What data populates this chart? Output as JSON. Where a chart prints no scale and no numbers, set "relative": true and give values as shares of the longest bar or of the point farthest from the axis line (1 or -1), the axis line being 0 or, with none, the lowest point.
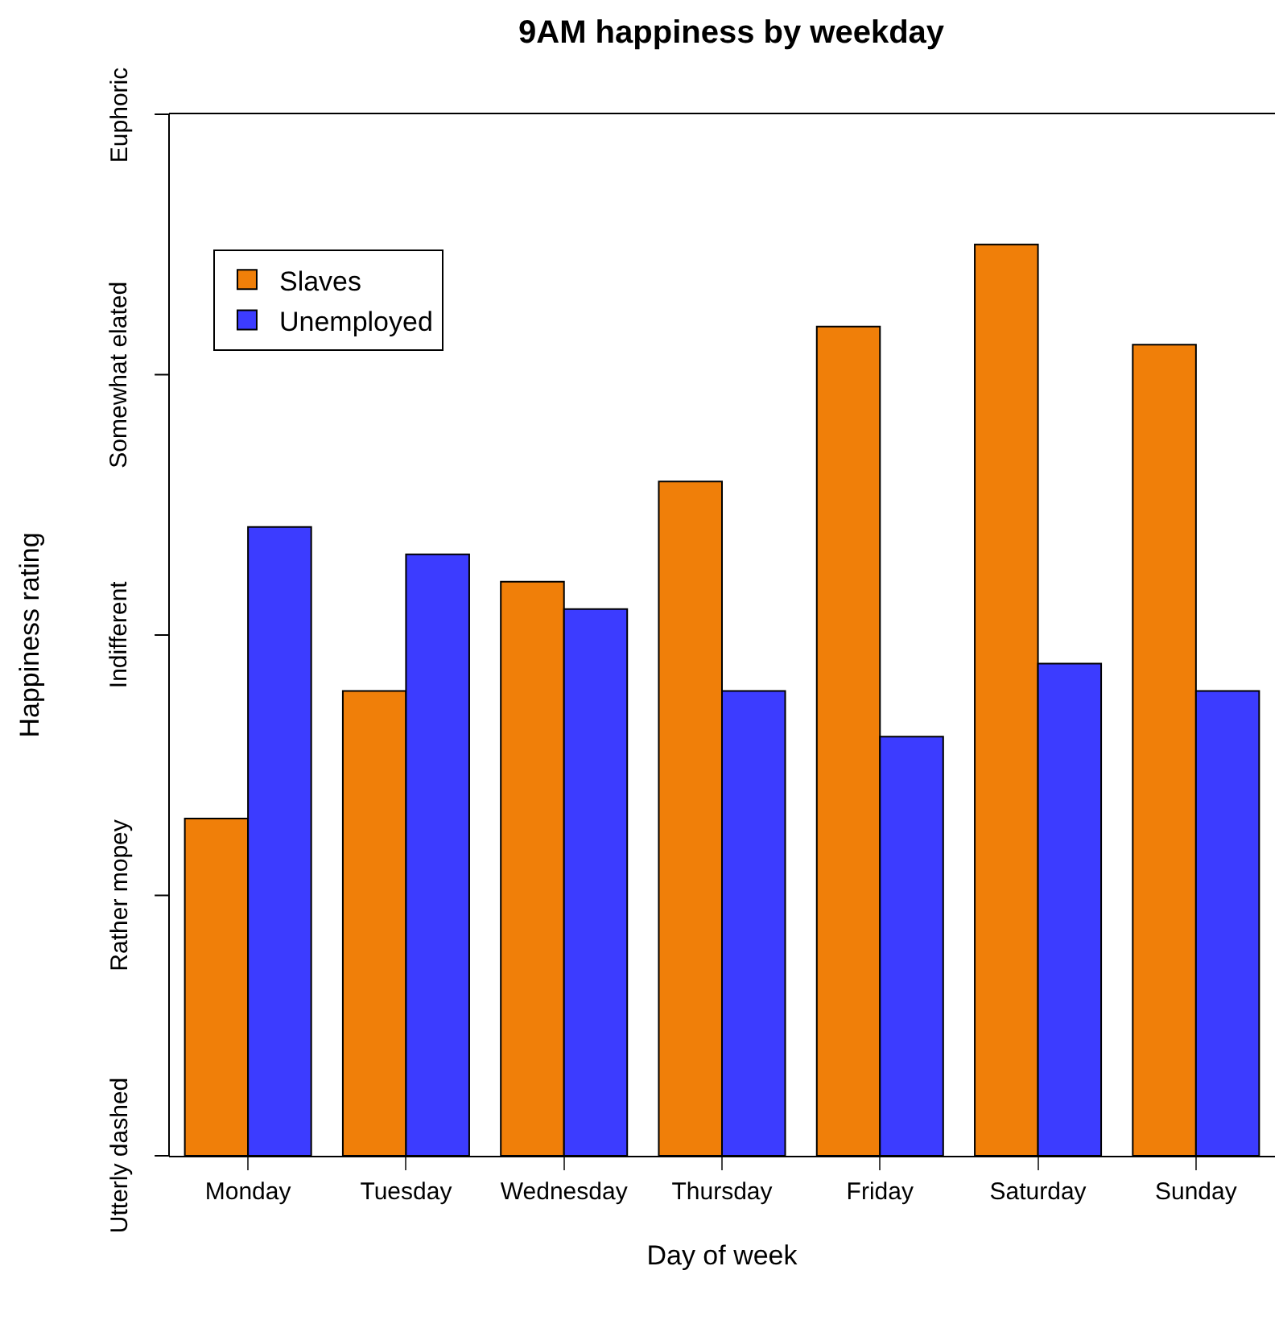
{
  "chart_data": {
    "type": "bar",
    "title": "9AM happiness by weekday",
    "xlabel": "Day of week",
    "ylabel": "Happiness rating",
    "categories": [
      "Monday",
      "Tuesday",
      "Wednesday",
      "Thursday",
      "Friday",
      "Saturday",
      "Sunday"
    ],
    "series": [
      {
        "name": "Slaves",
        "color": "#f07f09",
        "values": [
          0.37,
          0.51,
          0.63,
          0.74,
          0.91,
          1,
          0.89
        ]
      },
      {
        "name": "Unemployed",
        "color": "#3c3cff",
        "values": [
          0.69,
          0.66,
          0.6,
          0.51,
          0.46,
          0.54,
          0.51
        ]
      }
    ],
    "relative": true,
    "annotations": [
      "Utterly dashed",
      "Rather mopey",
      "Indifferent",
      "Somewhat elated",
      "Euphoric"
    ],
    "grid": false,
    "legend": "top left"
  }
}
